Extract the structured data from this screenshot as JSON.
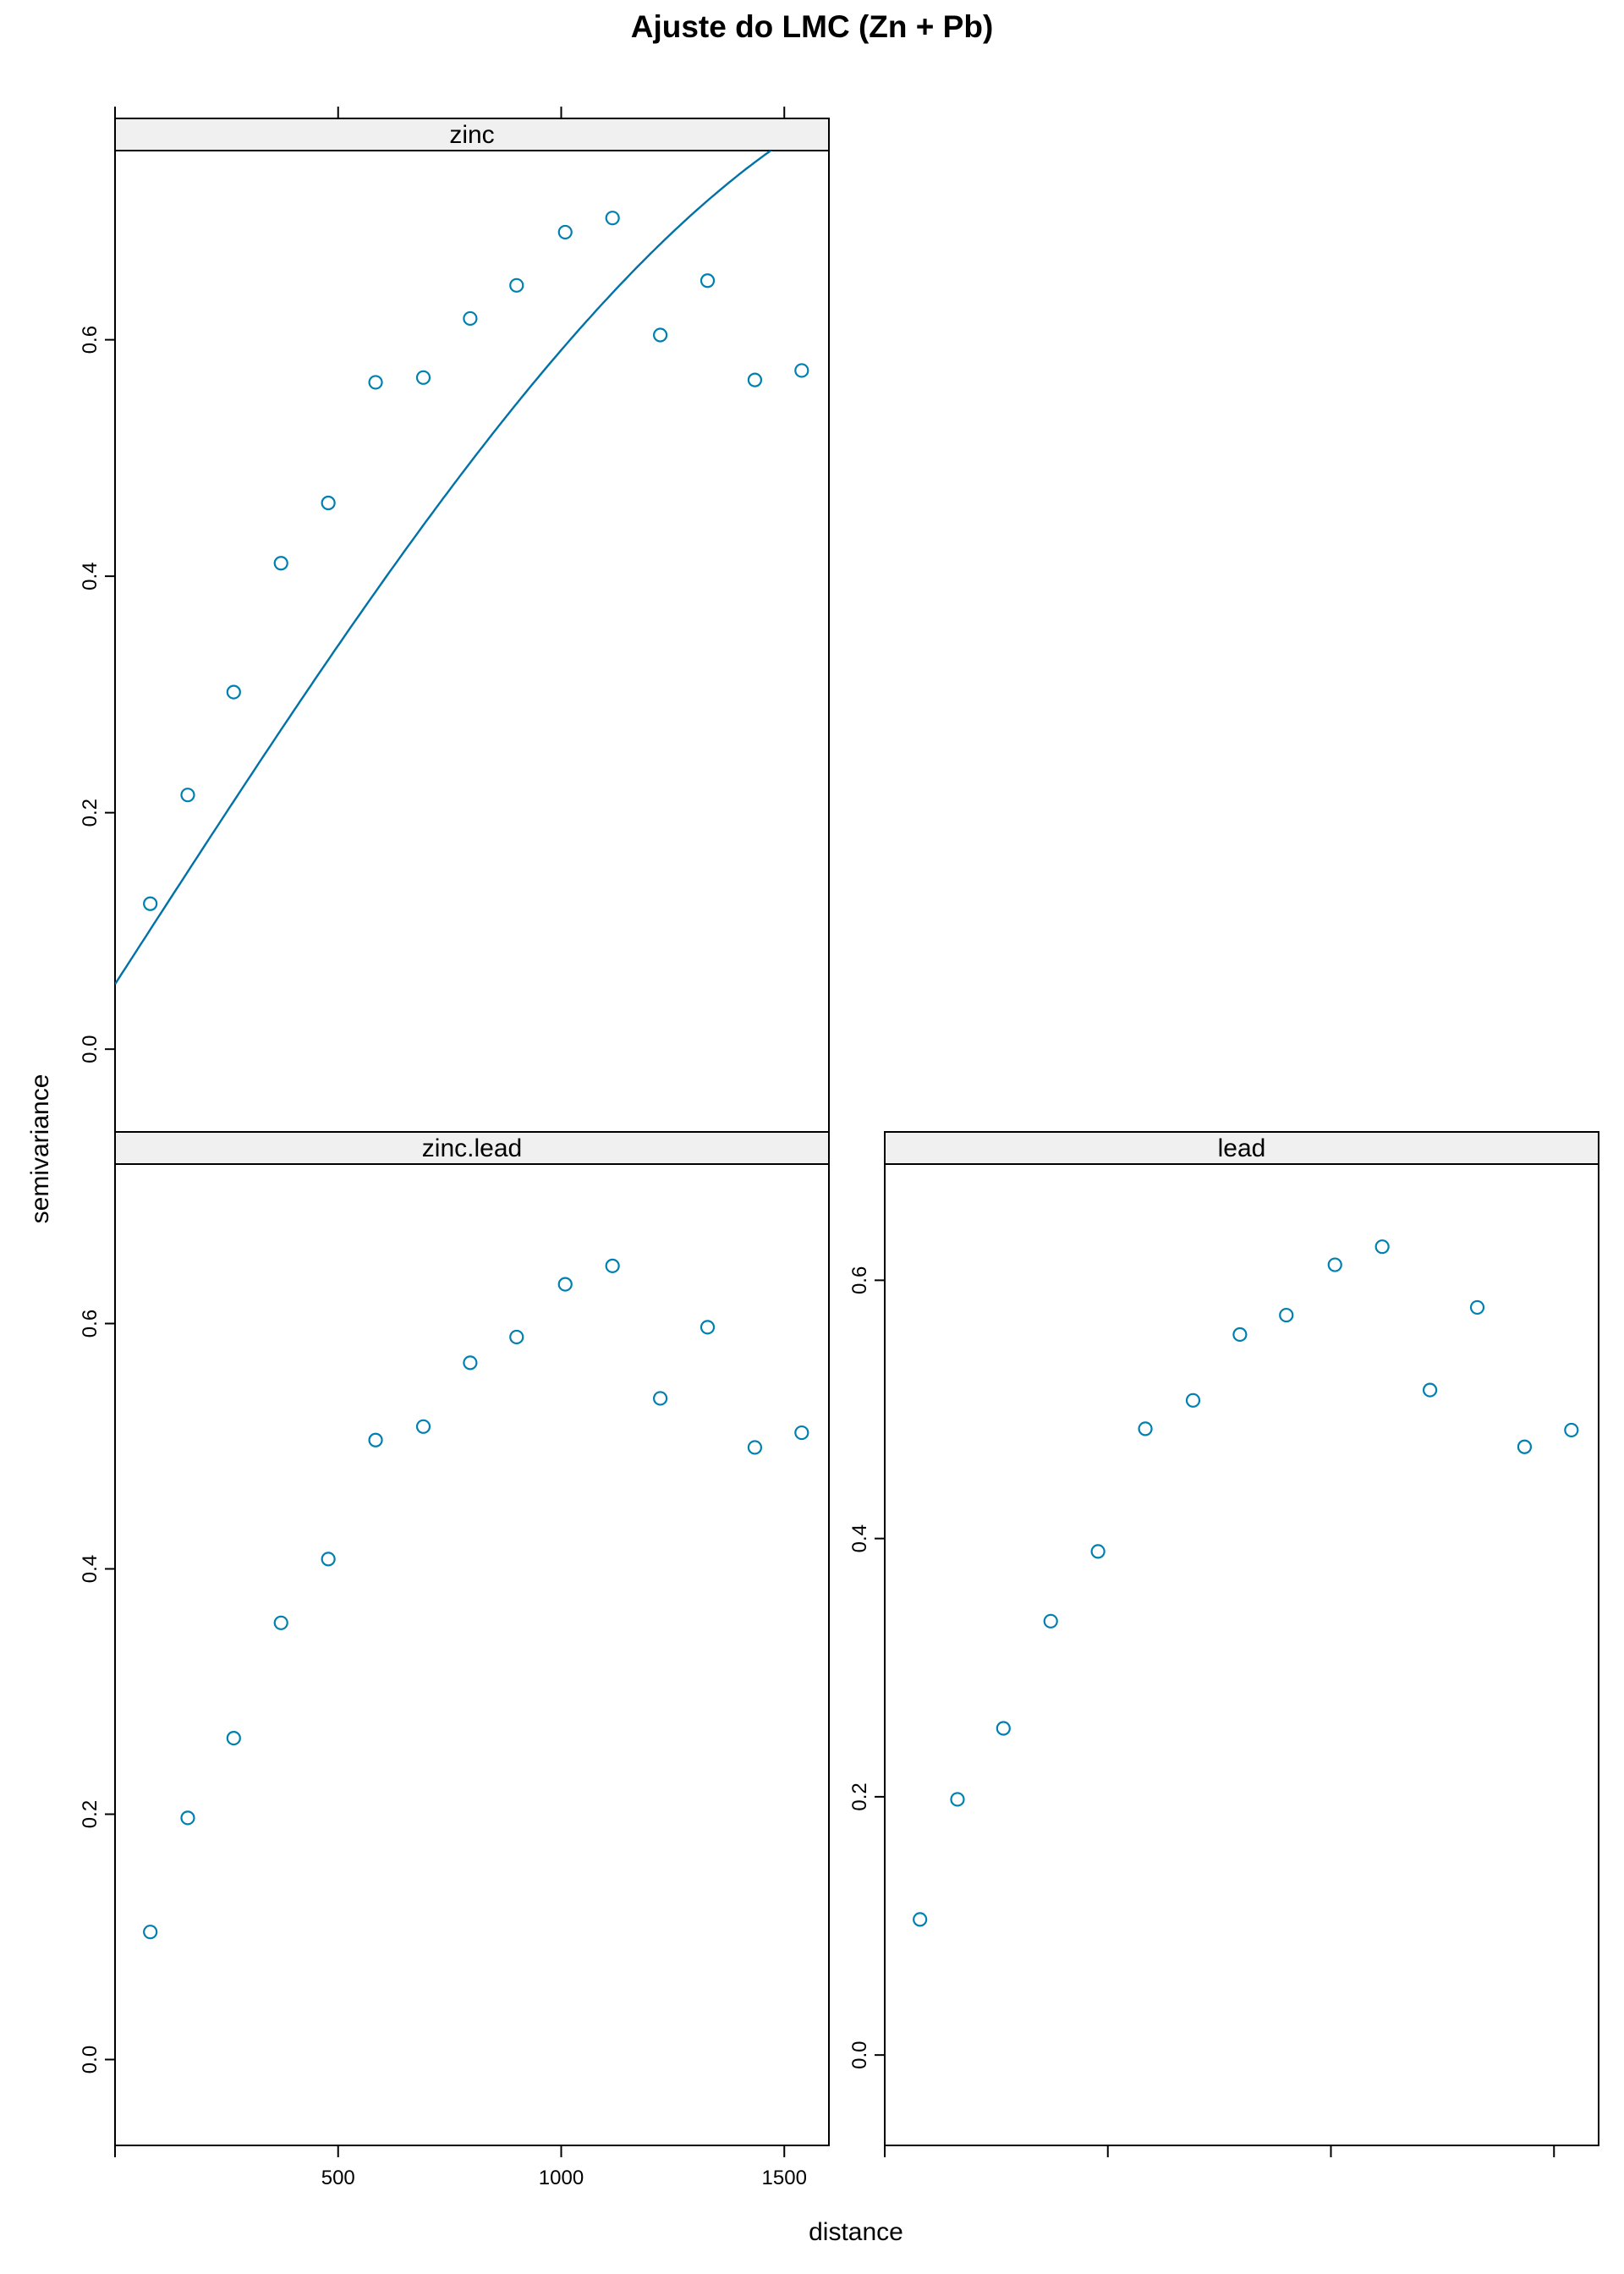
{
  "title": "Ajuste do LMC (Zn + Pb)",
  "xlabel": "distance",
  "ylabel": "semivariance",
  "colors": {
    "points": "#0080b0",
    "fit": "#0072a8",
    "strip": "#f0f0f0"
  },
  "chart_data": {
    "type": "scatter",
    "title": "Ajuste do LMC (Zn + Pb)",
    "xlabel": "distance",
    "ylabel": "semivariance",
    "xlim": [
      0,
      1600
    ],
    "x_ticks": [
      500,
      1000,
      1500
    ],
    "x_tick_labels": [
      "500",
      "1000",
      "1500"
    ],
    "panels": [
      {
        "name": "zinc",
        "ylim": [
          -0.07,
          0.76
        ],
        "y_ticks": [
          0.0,
          0.2,
          0.4,
          0.6
        ],
        "y_tick_labels": [
          "0.0",
          "0.2",
          "0.4",
          "0.6"
        ],
        "points": {
          "x": [
            79,
            163,
            266,
            372,
            478,
            584,
            691,
            796,
            900,
            1009,
            1115,
            1222,
            1328,
            1434,
            1539
          ],
          "y": [
            0.123,
            0.215,
            0.302,
            0.411,
            0.462,
            0.564,
            0.568,
            0.618,
            0.646,
            0.691,
            0.703,
            0.604,
            0.65,
            0.566,
            0.574
          ]
        },
        "fit": {
          "model": "Sph",
          "nugget": 0.055,
          "sill_psill": 0.78,
          "range": 2000
        }
      },
      {
        "name": "zinc.lead",
        "ylim": [
          -0.07,
          0.73
        ],
        "y_ticks": [
          0.0,
          0.2,
          0.4,
          0.6
        ],
        "y_tick_labels": [
          "0.0",
          "0.2",
          "0.4",
          "0.6"
        ],
        "points": {
          "x": [
            79,
            163,
            266,
            372,
            478,
            584,
            691,
            796,
            900,
            1009,
            1115,
            1222,
            1328,
            1434,
            1539
          ],
          "y": [
            0.104,
            0.197,
            0.262,
            0.356,
            0.408,
            0.505,
            0.516,
            0.568,
            0.589,
            0.632,
            0.647,
            0.539,
            0.597,
            0.499,
            0.511
          ]
        }
      },
      {
        "name": "lead",
        "ylim": [
          -0.07,
          0.69
        ],
        "y_ticks": [
          0.0,
          0.2,
          0.4,
          0.6
        ],
        "y_tick_labels": [
          "0.0",
          "0.2",
          "0.4",
          "0.6"
        ],
        "points": {
          "x": [
            79,
            163,
            266,
            372,
            478,
            584,
            691,
            796,
            900,
            1009,
            1115,
            1222,
            1328,
            1434,
            1539
          ],
          "y": [
            0.105,
            0.198,
            0.253,
            0.336,
            0.39,
            0.485,
            0.507,
            0.558,
            0.573,
            0.612,
            0.626,
            0.515,
            0.579,
            0.471,
            0.484
          ]
        }
      }
    ]
  }
}
